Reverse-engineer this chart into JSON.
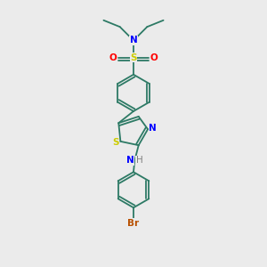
{
  "bg_color": "#ebebeb",
  "bond_color": "#2d7a65",
  "n_color": "#0000ff",
  "o_color": "#ff0000",
  "s_color": "#cccc00",
  "br_color": "#b85000",
  "nh_n_color": "#0000ff",
  "nh_h_color": "#808080",
  "line_width": 1.3,
  "figsize": [
    3.0,
    3.0
  ],
  "dpi": 100,
  "xlim": [
    0,
    10
  ],
  "ylim": [
    0,
    10
  ]
}
